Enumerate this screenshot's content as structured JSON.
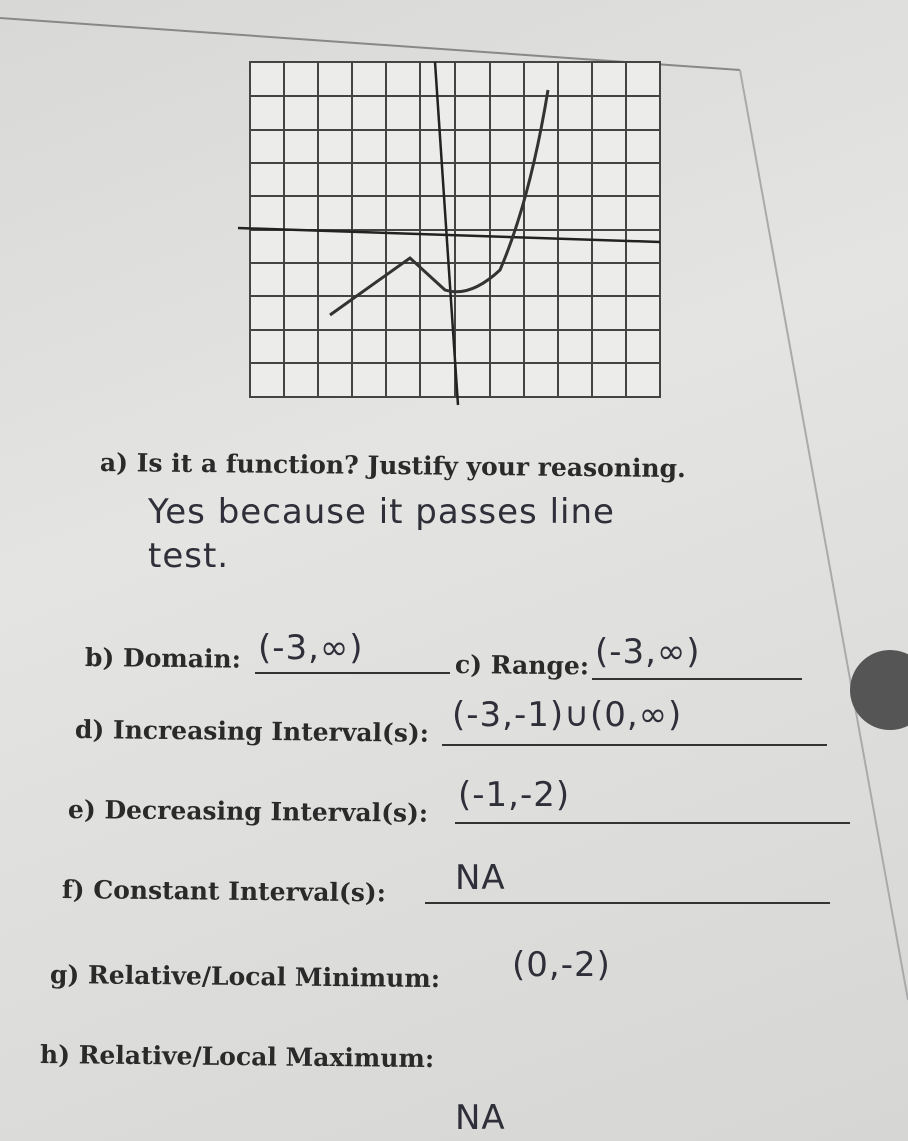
{
  "a": {
    "question": "a) Is it a function? Justify your reasoning.",
    "answer": "Yes because it passes line test."
  },
  "b": {
    "question": "b) Domain:",
    "answer": "(-3,∞)"
  },
  "c": {
    "question": "c) Range:",
    "answer": "(-3,∞)"
  },
  "d": {
    "question": "d) Increasing Interval(s):",
    "answer": "(-3,-1)∪(0,∞)"
  },
  "e": {
    "question": "e) Decreasing Interval(s):",
    "answer": "(-1,-2)"
  },
  "f": {
    "question": "f) Constant Interval(s):",
    "answer": "NA"
  },
  "g": {
    "question": "g) Relative/Local Minimum:",
    "answer": "(0,-2)"
  },
  "h": {
    "question": "h) Relative/Local Maximum:",
    "answer": "NA"
  }
}
